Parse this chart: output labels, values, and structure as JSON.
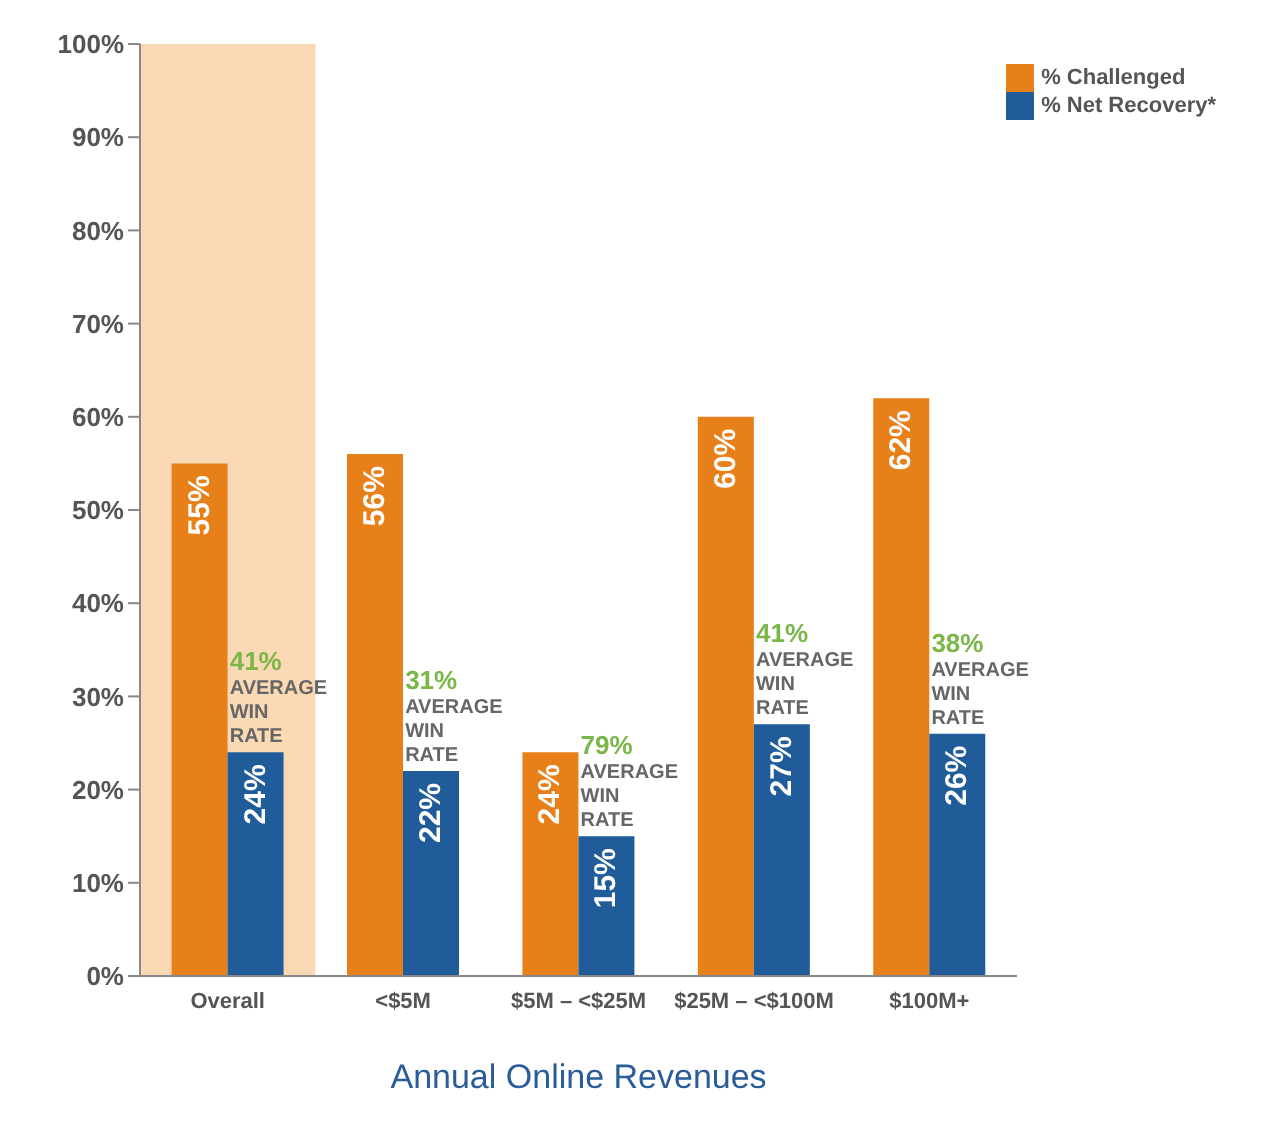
{
  "chart_data": {
    "type": "bar",
    "xlabel": "Annual Online Revenues",
    "categories": [
      "Overall",
      "<$5M",
      "$5M – <$25M",
      "$25M – <$100M",
      "$100M+"
    ],
    "series": [
      {
        "name": "% Challenged",
        "color": "#e8801a",
        "values": [
          55,
          56,
          24,
          60,
          62
        ],
        "value_labels": [
          "55%",
          "56%",
          "24%",
          "60%",
          "62%"
        ]
      },
      {
        "name": "% Net Recovery*",
        "color": "#1f5c99",
        "values": [
          24,
          22,
          15,
          27,
          26
        ],
        "value_labels": [
          "24%",
          "22%",
          "15%",
          "27%",
          "26%"
        ]
      }
    ],
    "ylim": [
      0,
      100
    ],
    "yticks": [
      {
        "value": 0,
        "label": "0%"
      },
      {
        "value": 10,
        "label": "10%"
      },
      {
        "value": 20,
        "label": "20%"
      },
      {
        "value": 30,
        "label": "30%"
      },
      {
        "value": 40,
        "label": "40%"
      },
      {
        "value": 50,
        "label": "50%"
      },
      {
        "value": 60,
        "label": "60%"
      },
      {
        "value": 70,
        "label": "70%"
      },
      {
        "value": 80,
        "label": "80%"
      },
      {
        "value": 90,
        "label": "90%"
      },
      {
        "value": 100,
        "label": "100%"
      }
    ],
    "bands": [
      {
        "axis": "x",
        "from": "Overall",
        "to": "Overall",
        "color": "#fbd9b4"
      }
    ],
    "annotations": [
      {
        "text": "41% AVERAGE WIN RATE",
        "x": "Overall",
        "y": 24
      },
      {
        "text": "31% AVERAGE WIN RATE",
        "x": "<$5M",
        "y": 22
      },
      {
        "text": "79% AVERAGE WIN RATE",
        "x": "$5M – <$25M",
        "y": 15
      },
      {
        "text": "41% AVERAGE WIN RATE",
        "x": "$25M – <$100M",
        "y": 27
      },
      {
        "text": "38% AVERAGE WIN RATE",
        "x": "$100M+",
        "y": 26
      }
    ],
    "grid": false,
    "legend": "top right"
  }
}
